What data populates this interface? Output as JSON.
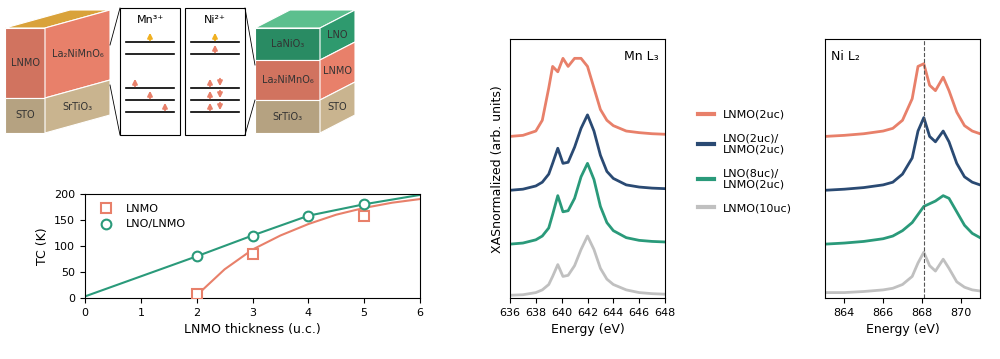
{
  "diagram": {
    "left_stack": {
      "layers": [
        {
          "left": "LNMO",
          "right": "La₂NiMnO₆"
        },
        {
          "left": "STO",
          "right": "SrTiO₃"
        }
      ]
    },
    "ions": [
      {
        "label": "Mn³⁺"
      },
      {
        "label": "Ni²⁺"
      }
    ],
    "right_stack": {
      "layers": [
        {
          "left": "LaNiO₃",
          "right": "LNO"
        },
        {
          "left": "La₂NiMnO₆",
          "right": "LNMO"
        },
        {
          "left": "SrTiO₃",
          "right": "STO"
        }
      ]
    }
  },
  "chart_data": [
    {
      "type": "line",
      "xlabel": "LNMO thickness (u.c.)",
      "ylabel": "TC (K)",
      "xlim": [
        0,
        6
      ],
      "xticks": [
        0,
        1,
        2,
        3,
        4,
        5,
        6
      ],
      "ylim": [
        0,
        200
      ],
      "yticks": [
        0,
        50,
        100,
        150,
        200
      ],
      "legend": "upper left",
      "series": [
        {
          "name": "LNMO",
          "color": "#e8806a",
          "marker": "square",
          "x": [
            2,
            3,
            5
          ],
          "values": [
            8,
            85,
            157
          ],
          "fit": {
            "x": [
              2,
              2.5,
              3,
              3.5,
              4,
              4.5,
              5,
              5.5,
              6
            ],
            "values": [
              5,
              55,
              93,
              120,
              142,
              160,
              173,
              183,
              190
            ]
          }
        },
        {
          "name": "LNO/LNMO",
          "color": "#2a9a7a",
          "marker": "circle",
          "x": [
            2,
            3,
            4,
            5
          ],
          "values": [
            80,
            120,
            158,
            180
          ],
          "fit": {
            "x": [
              0,
              2,
              3,
              4,
              5,
              6
            ],
            "values": [
              3,
              80,
              120,
              158,
              180,
              198
            ]
          }
        }
      ]
    },
    {
      "type": "line",
      "title": "Mn L₃",
      "xlabel": "Energy (eV)",
      "ylabel": "XASnormalized (arb. units)",
      "xlim": [
        636,
        648
      ],
      "xticks": [
        636,
        638,
        640,
        642,
        644,
        646,
        648
      ],
      "ylim": [
        0,
        4.8
      ],
      "tick_labels": "x",
      "legend": "center",
      "x": [
        636,
        637,
        638,
        638.5,
        639,
        639.3,
        639.7,
        640.1,
        640.5,
        641,
        641.5,
        642,
        642.5,
        643,
        643.5,
        644,
        645,
        646,
        647,
        648
      ],
      "series": [
        {
          "name": "LNMO(2uc)",
          "color": "#e8806a",
          "values": [
            3.0,
            3.02,
            3.1,
            3.3,
            3.9,
            4.3,
            4.2,
            4.45,
            4.3,
            4.45,
            4.45,
            4.3,
            3.9,
            3.5,
            3.3,
            3.2,
            3.1,
            3.07,
            3.05,
            3.04
          ]
        },
        {
          "name": "LNO(2uc)/\nLNMO(2uc)",
          "color": "#2a4a73",
          "values": [
            2.0,
            2.02,
            2.08,
            2.15,
            2.3,
            2.5,
            2.78,
            2.5,
            2.52,
            2.8,
            3.15,
            3.4,
            3.1,
            2.65,
            2.35,
            2.22,
            2.1,
            2.06,
            2.04,
            2.03
          ]
        },
        {
          "name": "LNO(8uc)/\nLNMO(2uc)",
          "color": "#2a9a7a",
          "values": [
            1.0,
            1.02,
            1.08,
            1.15,
            1.3,
            1.55,
            1.9,
            1.6,
            1.62,
            1.85,
            2.25,
            2.5,
            2.2,
            1.7,
            1.4,
            1.25,
            1.12,
            1.07,
            1.05,
            1.04
          ]
        },
        {
          "name": "LNMO(10uc)",
          "color": "#c0c0c0",
          "values": [
            0.05,
            0.06,
            0.1,
            0.15,
            0.25,
            0.4,
            0.62,
            0.4,
            0.42,
            0.6,
            0.9,
            1.15,
            0.9,
            0.55,
            0.35,
            0.25,
            0.15,
            0.1,
            0.08,
            0.07
          ]
        }
      ]
    },
    {
      "type": "line",
      "title": "Ni L₂",
      "xlabel": "Energy (eV)",
      "xlim": [
        863,
        871
      ],
      "xticks": [
        864,
        866,
        868,
        870
      ],
      "ylim": [
        0,
        4.8
      ],
      "tick_labels": "x",
      "reference_x": 868.1,
      "x": [
        863,
        864,
        865,
        866,
        866.5,
        867,
        867.5,
        867.8,
        868.1,
        868.4,
        868.7,
        869.1,
        869.4,
        869.8,
        870.2,
        870.6,
        871
      ],
      "series": [
        {
          "name": "LNMO(2uc)",
          "color": "#e8806a",
          "values": [
            3.0,
            3.02,
            3.05,
            3.1,
            3.15,
            3.3,
            3.7,
            4.3,
            4.35,
            3.95,
            3.85,
            4.1,
            3.85,
            3.45,
            3.2,
            3.1,
            3.05
          ]
        },
        {
          "name": "LNO(2uc)/\nLNMO(2uc)",
          "color": "#2a4a73",
          "values": [
            2.0,
            2.02,
            2.05,
            2.1,
            2.15,
            2.3,
            2.6,
            3.1,
            3.35,
            3.0,
            2.9,
            3.1,
            2.9,
            2.5,
            2.25,
            2.15,
            2.1
          ]
        },
        {
          "name": "LNO(8uc)/\nLNMO(2uc)",
          "color": "#2a9a7a",
          "values": [
            1.0,
            1.02,
            1.05,
            1.1,
            1.15,
            1.25,
            1.4,
            1.55,
            1.7,
            1.75,
            1.8,
            1.9,
            1.85,
            1.6,
            1.35,
            1.2,
            1.12
          ]
        },
        {
          "name": "LNMO(10uc)",
          "color": "#c0c0c0",
          "values": [
            0.1,
            0.1,
            0.12,
            0.15,
            0.18,
            0.25,
            0.4,
            0.65,
            0.85,
            0.6,
            0.5,
            0.72,
            0.55,
            0.3,
            0.2,
            0.15,
            0.13
          ]
        }
      ]
    }
  ]
}
